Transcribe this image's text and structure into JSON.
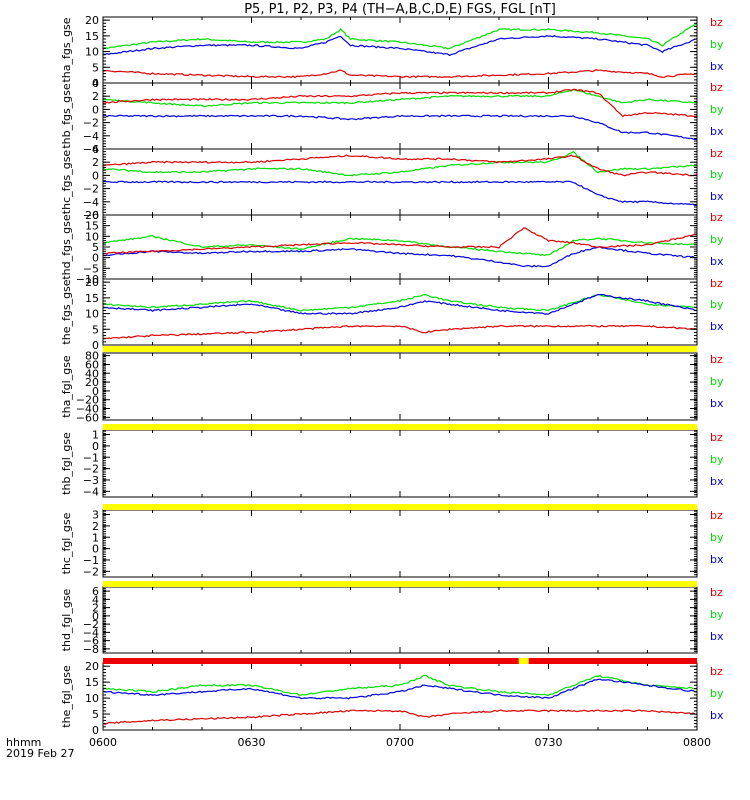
{
  "title": "P5, P1, P2, P3, P4 (TH−A,B,C,D,E) FGS, FGL [nT]",
  "footer": {
    "time_label": "hhmm",
    "date_label": "2019 Feb 27"
  },
  "x_ticks": [
    "0600",
    "0630",
    "0700",
    "0730",
    "0800"
  ],
  "colors": {
    "bz": "#dd0000",
    "by": "#00dd00",
    "bx": "#0000dd",
    "bar_yellow": "#ffff00",
    "bar_red": "#ee0000",
    "frame": "#000000"
  },
  "chart_data": [
    {
      "type": "line",
      "panel": "tha_fgs_gse",
      "ylabel": "tha_fgs_gse",
      "yticks": [
        0,
        5,
        10,
        15,
        20
      ],
      "ylim": [
        0,
        21
      ],
      "x": [
        "0600",
        "0610",
        "0620",
        "0630",
        "0640",
        "0645",
        "0648",
        "0650",
        "0700",
        "0710",
        "0720",
        "0730",
        "0740",
        "0750",
        "0753",
        "0800"
      ],
      "series": [
        {
          "name": "bz",
          "values": [
            4,
            3,
            2.5,
            2,
            2,
            3,
            4,
            2.5,
            2,
            2,
            2.5,
            3,
            4,
            3,
            2,
            3
          ]
        },
        {
          "name": "by",
          "values": [
            11,
            13,
            14,
            13,
            13,
            14,
            17,
            14,
            13,
            11,
            17,
            17,
            16,
            14,
            12,
            19
          ]
        },
        {
          "name": "bx",
          "values": [
            9,
            11,
            12,
            12,
            11,
            13,
            15,
            12,
            11,
            9,
            14,
            15,
            14,
            12,
            10,
            14
          ]
        }
      ],
      "legend": [
        "bz",
        "by",
        "bx"
      ]
    },
    {
      "type": "line",
      "panel": "thb_fgs_gse",
      "ylabel": "thb_fgs_gse",
      "yticks": [
        4,
        2,
        0,
        -2,
        -4,
        -6
      ],
      "ylim": [
        -6,
        4
      ],
      "x": [
        "0600",
        "0610",
        "0620",
        "0630",
        "0640",
        "0650",
        "0700",
        "0710",
        "0720",
        "0730",
        "0735",
        "0740",
        "0745",
        "0750",
        "0800"
      ],
      "series": [
        {
          "name": "bz",
          "values": [
            1,
            1.5,
            1.5,
            1.5,
            2,
            2,
            2.5,
            2.5,
            2.5,
            2.5,
            3,
            2.5,
            -1,
            -0.5,
            -1
          ]
        },
        {
          "name": "by",
          "values": [
            1.5,
            1,
            0.5,
            1,
            1,
            1,
            1.5,
            2,
            2,
            2,
            3,
            2,
            1,
            1.5,
            1
          ]
        },
        {
          "name": "bx",
          "values": [
            -1,
            -1,
            -1,
            -1,
            -1,
            -1.5,
            -1,
            -1,
            -1,
            -1,
            -1,
            -2,
            -3.5,
            -3.5,
            -4.5
          ]
        }
      ],
      "legend": [
        "bz",
        "by",
        "bx"
      ]
    },
    {
      "type": "line",
      "panel": "thc_fgs_gse",
      "ylabel": "thc_fgs_gse",
      "yticks": [
        4,
        2,
        0,
        -2,
        -4,
        -6
      ],
      "ylim": [
        -6,
        4
      ],
      "x": [
        "0600",
        "0610",
        "0620",
        "0630",
        "0640",
        "0650",
        "0700",
        "0710",
        "0720",
        "0730",
        "0735",
        "0740",
        "0745",
        "0750",
        "0800"
      ],
      "series": [
        {
          "name": "bz",
          "values": [
            1.5,
            2,
            2,
            2,
            2.5,
            3,
            2.5,
            2.5,
            2,
            2.5,
            3,
            1,
            0,
            0.5,
            0
          ]
        },
        {
          "name": "by",
          "values": [
            1,
            0.5,
            0.5,
            1,
            1,
            0,
            0.5,
            1.5,
            2,
            2,
            3.5,
            0.5,
            1,
            1,
            1.5
          ]
        },
        {
          "name": "bx",
          "values": [
            -1,
            -1,
            -1,
            -1,
            -1,
            -1,
            -1,
            -1,
            -1,
            -1,
            -1,
            -3,
            -4,
            -4,
            -4.5
          ]
        }
      ],
      "legend": [
        "bz",
        "by",
        "bx"
      ]
    },
    {
      "type": "line",
      "panel": "thd_fgs_gse",
      "ylabel": "thd_fgs_gse",
      "yticks": [
        20,
        15,
        10,
        5,
        0,
        -5,
        -10
      ],
      "ylim": [
        -10,
        20
      ],
      "x": [
        "0600",
        "0610",
        "0620",
        "0630",
        "0640",
        "0650",
        "0700",
        "0710",
        "0720",
        "0725",
        "0730",
        "0735",
        "0740",
        "0750",
        "0800"
      ],
      "series": [
        {
          "name": "bz",
          "values": [
            2,
            3,
            4,
            5,
            6,
            7,
            6,
            5,
            5,
            14,
            8,
            7,
            5,
            6,
            11
          ]
        },
        {
          "name": "by",
          "values": [
            7,
            10,
            5,
            6,
            4,
            9,
            8,
            5,
            3,
            2,
            1,
            8,
            9,
            7,
            6
          ]
        },
        {
          "name": "bx",
          "values": [
            1,
            3,
            2,
            3,
            3,
            4,
            2,
            1,
            -2,
            -4,
            -4,
            2,
            5,
            2,
            0
          ]
        }
      ],
      "legend": [
        "bz",
        "by",
        "bx"
      ]
    },
    {
      "type": "line",
      "panel": "the_fgs_gse",
      "ylabel": "the_fgs_gse",
      "yticks": [
        0,
        5,
        10,
        15,
        20
      ],
      "ylim": [
        0,
        21
      ],
      "x": [
        "0600",
        "0610",
        "0620",
        "0630",
        "0640",
        "0650",
        "0700",
        "0705",
        "0710",
        "0720",
        "0730",
        "0740",
        "0750",
        "0800"
      ],
      "series": [
        {
          "name": "bz",
          "values": [
            2,
            3,
            3.5,
            4,
            5,
            6,
            6,
            4,
            5,
            6,
            6,
            6,
            6,
            5
          ]
        },
        {
          "name": "by",
          "values": [
            13,
            12,
            13,
            14,
            11,
            12,
            14,
            16,
            14,
            12,
            11,
            16,
            13,
            12
          ]
        },
        {
          "name": "bx",
          "values": [
            12,
            11,
            12,
            13,
            10,
            10,
            12,
            14,
            13,
            11,
            10,
            16,
            14,
            11
          ]
        }
      ],
      "legend": [
        "bz",
        "by",
        "bx"
      ]
    },
    {
      "type": "line",
      "panel": "tha_fgl_gse",
      "ylabel": "tha_fgl_gse",
      "yticks": [
        80,
        60,
        40,
        20,
        0,
        -20,
        -40,
        -60
      ],
      "ylim": [
        -66,
        86
      ],
      "series": [],
      "legend": [
        "bz",
        "by",
        "bx"
      ]
    },
    {
      "type": "line",
      "panel": "thb_fgl_gse",
      "ylabel": "thb_fgl_gse",
      "yticks": [
        1,
        0,
        -1,
        -2,
        -3,
        -4
      ],
      "ylim": [
        -4.5,
        1.4
      ],
      "series": [],
      "legend": [
        "bz",
        "by",
        "bx"
      ]
    },
    {
      "type": "line",
      "panel": "thc_fgl_gse",
      "ylabel": "thc_fgl_gse",
      "yticks": [
        3,
        2,
        1,
        0,
        -1,
        -2
      ],
      "ylim": [
        -2.5,
        3.4
      ],
      "series": [],
      "legend": [
        "bz",
        "by",
        "bx"
      ]
    },
    {
      "type": "line",
      "panel": "thd_fgl_gse",
      "ylabel": "thd_fgl_gse",
      "yticks": [
        6,
        4,
        2,
        0,
        -2,
        -4,
        -6,
        -8
      ],
      "ylim": [
        -9,
        7
      ],
      "series": [],
      "legend": [
        "bz",
        "by",
        "bx"
      ]
    },
    {
      "type": "line",
      "panel": "the_fgl_gse",
      "ylabel": "the_fgl_gse",
      "yticks": [
        0,
        5,
        10,
        15,
        20
      ],
      "ylim": [
        0,
        21
      ],
      "x": [
        "0600",
        "0610",
        "0620",
        "0630",
        "0640",
        "0650",
        "0700",
        "0705",
        "0710",
        "0720",
        "0730",
        "0740",
        "0750",
        "0800"
      ],
      "series": [
        {
          "name": "bz",
          "values": [
            2,
            3,
            3.5,
            4,
            5,
            6,
            6,
            4,
            5,
            6,
            6,
            6,
            6,
            5
          ]
        },
        {
          "name": "by",
          "values": [
            13,
            12,
            14,
            14,
            11,
            13,
            14,
            17,
            14,
            12,
            11,
            17,
            14,
            13
          ]
        },
        {
          "name": "bx",
          "values": [
            12,
            11,
            12,
            13,
            10,
            10,
            12,
            14,
            13,
            11,
            10,
            16,
            14,
            12
          ]
        }
      ],
      "legend": [
        "bz",
        "by",
        "bx"
      ]
    }
  ],
  "status_bars": [
    {
      "after_panel": "the_fgs_gse",
      "segments": [
        {
          "color": "yellow",
          "from": "0600",
          "to": "0800"
        }
      ]
    },
    {
      "after_panel": "tha_fgl_gse",
      "segments": [
        {
          "color": "yellow",
          "from": "0600",
          "to": "0800"
        }
      ]
    },
    {
      "after_panel": "thb_fgl_gse",
      "segments": [
        {
          "color": "yellow",
          "from": "0600",
          "to": "0800"
        }
      ]
    },
    {
      "after_panel": "thc_fgl_gse",
      "segments": [
        {
          "color": "yellow",
          "from": "0600",
          "to": "0800"
        }
      ]
    },
    {
      "after_panel": "thd_fgl_gse",
      "segments": [
        {
          "color": "red",
          "from": "0600",
          "to": "0724"
        },
        {
          "color": "yellow",
          "from": "0724",
          "to": "0726"
        },
        {
          "color": "red",
          "from": "0726",
          "to": "0800"
        }
      ]
    }
  ]
}
